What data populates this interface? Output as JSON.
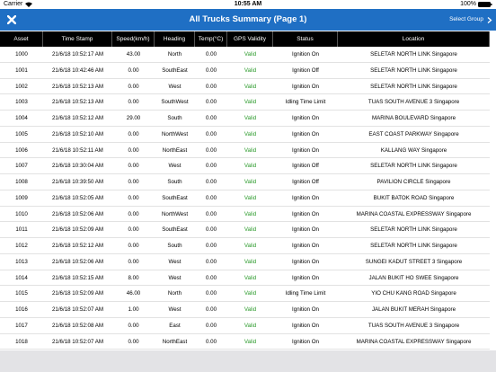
{
  "status_bar": {
    "carrier": "Carrier",
    "time": "10:55 AM",
    "battery": "100%"
  },
  "header": {
    "title": "All Trucks Summary (Page 1)",
    "action": "Select Group"
  },
  "table": {
    "columns": [
      "Asset",
      "Time Stamp",
      "Speed(km/h)",
      "Heading",
      "Temp(°C)",
      "GPS Validity",
      "Status",
      "Location"
    ],
    "rows": [
      [
        "1000",
        "21/6/18 10:52:17 AM",
        "43.00",
        "North",
        "0.00",
        "Valid",
        "Ignition On",
        "SELETAR NORTH LINK Singapore"
      ],
      [
        "1001",
        "21/6/18 10:42:46 AM",
        "0.00",
        "SouthEast",
        "0.00",
        "Valid",
        "Ignition Off",
        "SELETAR NORTH LINK Singapore"
      ],
      [
        "1002",
        "21/6/18 10:52:13 AM",
        "0.00",
        "West",
        "0.00",
        "Valid",
        "Ignition On",
        "SELETAR NORTH LINK Singapore"
      ],
      [
        "1003",
        "21/6/18 10:52:13 AM",
        "0.00",
        "SouthWest",
        "0.00",
        "Valid",
        "Idling Time Limit",
        "TUAS SOUTH AVENUE 3 Singapore"
      ],
      [
        "1004",
        "21/6/18 10:52:12 AM",
        "29.00",
        "South",
        "0.00",
        "Valid",
        "Ignition On",
        "MARINA BOULEVARD Singapore"
      ],
      [
        "1005",
        "21/6/18 10:52:10 AM",
        "0.00",
        "NorthWest",
        "0.00",
        "Valid",
        "Ignition On",
        "EAST COAST PARKWAY Singapore"
      ],
      [
        "1006",
        "21/6/18 10:52:11 AM",
        "0.00",
        "NorthEast",
        "0.00",
        "Valid",
        "Ignition On",
        "KALLANG WAY Singapore"
      ],
      [
        "1007",
        "21/6/18 10:30:04 AM",
        "0.00",
        "West",
        "0.00",
        "Valid",
        "Ignition Off",
        "SELETAR NORTH LINK Singapore"
      ],
      [
        "1008",
        "21/6/18 10:39:50 AM",
        "0.00",
        "South",
        "0.00",
        "Valid",
        "Ignition Off",
        "PAVILION CIRCLE Singapore"
      ],
      [
        "1009",
        "21/6/18 10:52:05 AM",
        "0.00",
        "SouthEast",
        "0.00",
        "Valid",
        "Ignition On",
        "BUKIT BATOK ROAD Singapore"
      ],
      [
        "1010",
        "21/6/18 10:52:06 AM",
        "0.00",
        "NorthWest",
        "0.00",
        "Valid",
        "Ignition On",
        "MARINA COASTAL EXPRESSWAY Singapore"
      ],
      [
        "1011",
        "21/6/18 10:52:09 AM",
        "0.00",
        "SouthEast",
        "0.00",
        "Valid",
        "Ignition On",
        "SELETAR NORTH LINK Singapore"
      ],
      [
        "1012",
        "21/6/18 10:52:12 AM",
        "0.00",
        "South",
        "0.00",
        "Valid",
        "Ignition On",
        "SELETAR NORTH LINK Singapore"
      ],
      [
        "1013",
        "21/6/18 10:52:06 AM",
        "0.00",
        "West",
        "0.00",
        "Valid",
        "Ignition On",
        "SUNGEI KADUT STREET 3 Singapore"
      ],
      [
        "1014",
        "21/6/18 10:52:15 AM",
        "8.00",
        "West",
        "0.00",
        "Valid",
        "Ignition On",
        "JALAN BUKIT HO SWEE Singapore"
      ],
      [
        "1015",
        "21/6/18 10:52:09 AM",
        "46.00",
        "North",
        "0.00",
        "Valid",
        "Idling Time Limit",
        "YIO CHU KANG ROAD Singapore"
      ],
      [
        "1016",
        "21/6/18 10:52:07 AM",
        "1.00",
        "West",
        "0.00",
        "Valid",
        "Ignition On",
        "JALAN BUKIT MERAH Singapore"
      ],
      [
        "1017",
        "21/6/18 10:52:08 AM",
        "0.00",
        "East",
        "0.00",
        "Valid",
        "Ignition On",
        "TUAS SOUTH AVENUE 3 Singapore"
      ],
      [
        "1018",
        "21/6/18 10:52:07 AM",
        "0.00",
        "NorthEast",
        "0.00",
        "Valid",
        "Ignition On",
        "MARINA COASTAL EXPRESSWAY Singapore"
      ]
    ]
  }
}
